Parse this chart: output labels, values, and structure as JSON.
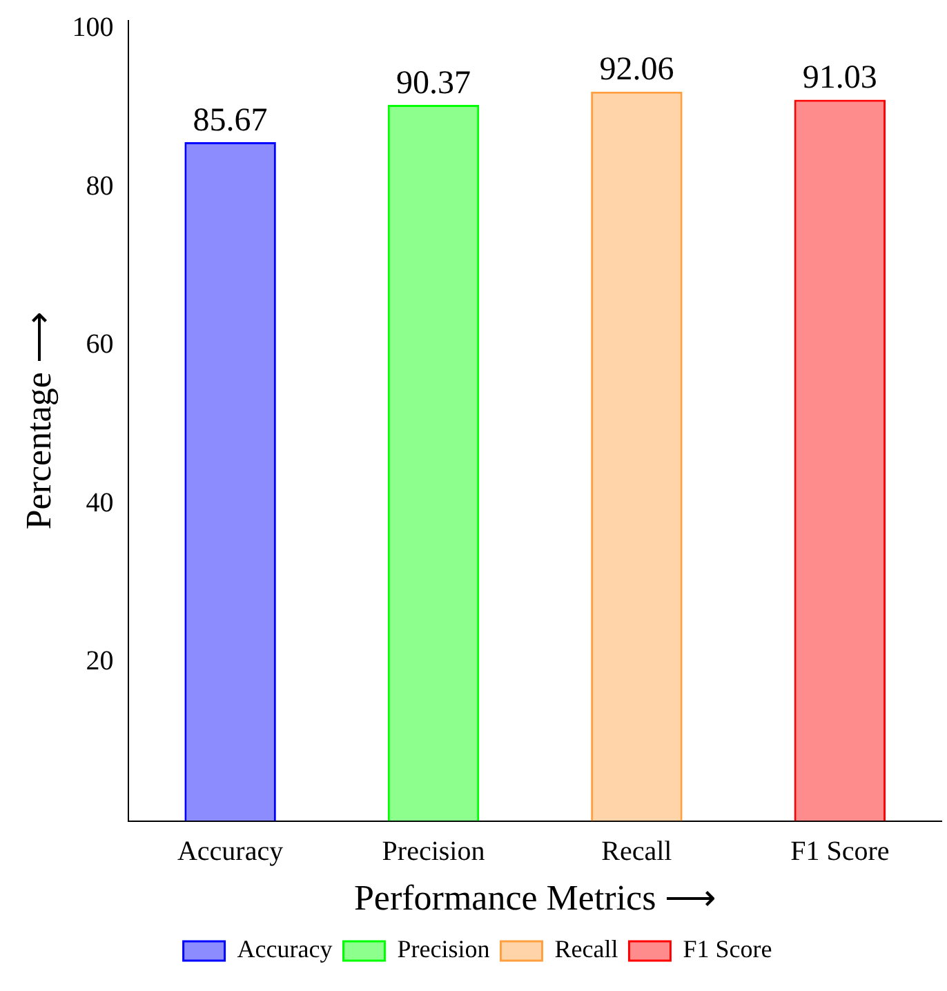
{
  "chart_data": {
    "type": "bar",
    "xlabel": "Performance Metrics ⟶",
    "ylabel": "Percentage ⟶",
    "categories": [
      "Accuracy",
      "Precision",
      "Recall",
      "F1 Score"
    ],
    "series": [
      {
        "name": "Accuracy",
        "color": "#0000ff",
        "values": [
          85.67,
          null,
          null,
          null
        ]
      },
      {
        "name": "Precision",
        "color": "#00ff00",
        "values": [
          null,
          90.37,
          null,
          null
        ]
      },
      {
        "name": "Recall",
        "color": "#ff9f3f",
        "values": [
          null,
          null,
          92.06,
          null
        ]
      },
      {
        "name": "F1 Score",
        "color": "#ff0000",
        "values": [
          null,
          null,
          null,
          91.03
        ]
      }
    ],
    "ylim": [
      0,
      101
    ],
    "yticks": [
      20,
      40,
      60,
      80,
      100
    ],
    "grid": false,
    "legend": "bottom",
    "data_labels": true
  }
}
